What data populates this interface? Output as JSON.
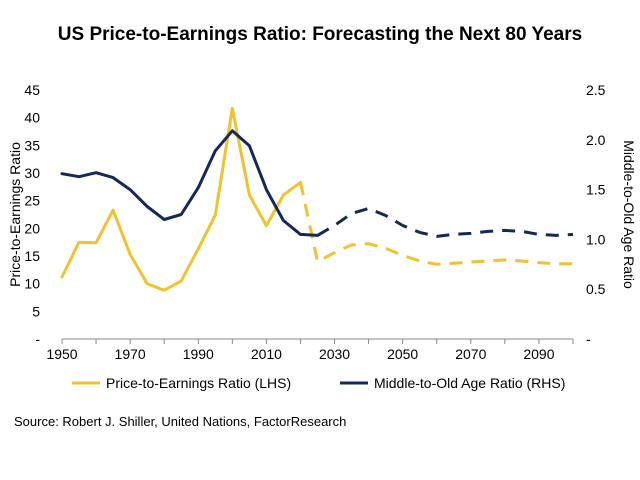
{
  "chart_data": {
    "type": "line",
    "title": "US Price-to-Earnings Ratio: Forecasting the Next 80 Years",
    "ylabel_left": "Price-to-Earnings Ratio",
    "ylabel_right": "Middle-to-Old Age Ratio",
    "xlim": [
      1950,
      2100
    ],
    "ylim_left": [
      0,
      45
    ],
    "ylim_right": [
      0,
      2.5
    ],
    "x_ticks": [
      "1950",
      "1970",
      "1990",
      "2010",
      "2030",
      "2050",
      "2070",
      "2090"
    ],
    "y_left_ticks": [
      {
        "value": 0,
        "label": "-"
      },
      {
        "value": 5,
        "label": "5"
      },
      {
        "value": 10,
        "label": "10"
      },
      {
        "value": 15,
        "label": "15"
      },
      {
        "value": 20,
        "label": "20"
      },
      {
        "value": 25,
        "label": "25"
      },
      {
        "value": 30,
        "label": "30"
      },
      {
        "value": 35,
        "label": "35"
      },
      {
        "value": 40,
        "label": "40"
      },
      {
        "value": 45,
        "label": "45"
      }
    ],
    "y_right_ticks": [
      {
        "value": 0,
        "label": "-"
      },
      {
        "value": 0.5,
        "label": "0.5"
      },
      {
        "value": 1.0,
        "label": "1.0"
      },
      {
        "value": 1.5,
        "label": "1.5"
      },
      {
        "value": 2.0,
        "label": "2.0"
      },
      {
        "value": 2.5,
        "label": "2.5"
      }
    ],
    "legend_position": "bottom",
    "series": [
      {
        "name": "Price-to-Earnings Ratio (LHS)",
        "axis": "left",
        "color": "#F2C12E",
        "historical": {
          "x": [
            1950,
            1955,
            1960,
            1965,
            1970,
            1975,
            1980,
            1985,
            1990,
            1995,
            2000,
            2005,
            2010,
            2015,
            2020
          ],
          "y": [
            11.2,
            17.5,
            17.4,
            23.3,
            15.3,
            10.0,
            8.8,
            10.5,
            16.3,
            22.4,
            41.7,
            26.0,
            20.5,
            26.0,
            28.3
          ]
        },
        "forecast": {
          "x": [
            2020,
            2025,
            2030,
            2035,
            2040,
            2045,
            2050,
            2055,
            2060,
            2065,
            2070,
            2075,
            2080,
            2085,
            2090,
            2095,
            2100
          ],
          "y": [
            28.3,
            14.0,
            15.6,
            17.0,
            17.2,
            16.4,
            15.1,
            14.1,
            13.5,
            13.7,
            13.9,
            14.1,
            14.3,
            14.1,
            13.8,
            13.6,
            13.6
          ]
        }
      },
      {
        "name": "Middle-to-Old Age Ratio (RHS)",
        "axis": "right",
        "color": "#14285A",
        "historical": {
          "x": [
            1950,
            1955,
            1960,
            1965,
            1970,
            1975,
            1980,
            1985,
            1990,
            1995,
            2000,
            2005,
            2010,
            2015,
            2020,
            2025
          ],
          "y": [
            1.66,
            1.63,
            1.67,
            1.62,
            1.5,
            1.33,
            1.2,
            1.25,
            1.52,
            1.89,
            2.09,
            1.94,
            1.5,
            1.19,
            1.05,
            1.04
          ]
        },
        "forecast": {
          "x": [
            2025,
            2030,
            2035,
            2040,
            2045,
            2050,
            2055,
            2060,
            2065,
            2070,
            2075,
            2080,
            2085,
            2090,
            2095,
            2100
          ],
          "y": [
            1.04,
            1.14,
            1.26,
            1.31,
            1.24,
            1.14,
            1.07,
            1.03,
            1.05,
            1.06,
            1.08,
            1.09,
            1.08,
            1.05,
            1.04,
            1.05
          ]
        }
      }
    ]
  },
  "source": "Source: Robert J. Shiller, United Nations, FactorResearch"
}
